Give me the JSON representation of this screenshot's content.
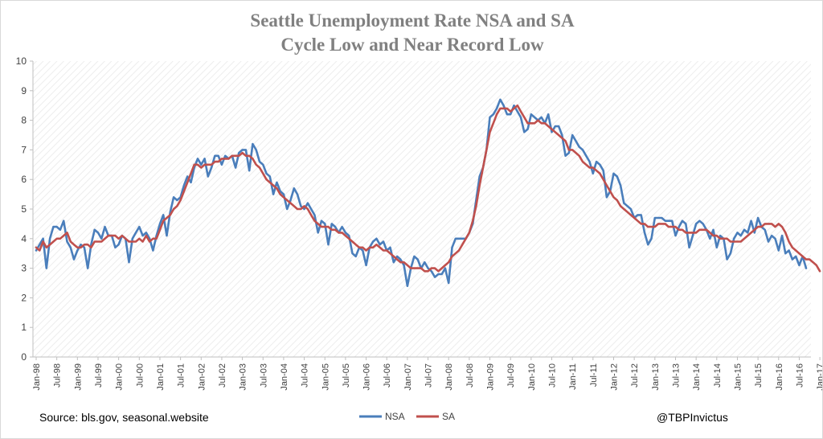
{
  "chart_data": {
    "type": "line",
    "title_line1": "Seattle Unemployment Rate NSA and SA",
    "title_line2": "Cycle Low and Near Record Low",
    "ylim": [
      0,
      10
    ],
    "yticks": [
      0,
      1,
      2,
      3,
      4,
      5,
      6,
      7,
      8,
      9,
      10
    ],
    "x_tick_labels": [
      "Jan-98",
      "Jul-98",
      "Jan-99",
      "Jul-99",
      "Jan-00",
      "Jul-00",
      "Jan-01",
      "Jul-01",
      "Jan-02",
      "Jul-02",
      "Jan-03",
      "Jul-03",
      "Jan-04",
      "Jul-04",
      "Jan-05",
      "Jul-05",
      "Jan-06",
      "Jul-06",
      "Jan-07",
      "Jul-07",
      "Jan-08",
      "Jul-08",
      "Jan-09",
      "Jul-09",
      "Jan-10",
      "Jul-10",
      "Jan-11",
      "Jul-11",
      "Jan-12",
      "Jul-12",
      "Jan-13",
      "Jul-13",
      "Jan-14",
      "Jul-14",
      "Jan-15",
      "Jul-15",
      "Jan-16",
      "Jul-16",
      "Jan-17"
    ],
    "x_start": "Jan-98",
    "grid": false,
    "legend_position": "bottom",
    "series": [
      {
        "name": "NSA",
        "color": "#4a7ebb",
        "values": [
          3.6,
          3.8,
          4.0,
          3.0,
          4.0,
          4.4,
          4.4,
          4.3,
          4.6,
          3.9,
          3.7,
          3.3,
          3.6,
          3.8,
          3.7,
          3.0,
          3.8,
          4.3,
          4.2,
          4.0,
          4.4,
          4.1,
          4.1,
          3.7,
          3.8,
          4.1,
          4.0,
          3.2,
          4.0,
          4.2,
          4.4,
          4.1,
          4.2,
          4.0,
          3.6,
          4.1,
          4.5,
          4.8,
          4.1,
          4.9,
          5.4,
          5.3,
          5.4,
          5.8,
          6.1,
          5.9,
          6.4,
          6.7,
          6.5,
          6.7,
          6.1,
          6.4,
          6.8,
          6.8,
          6.5,
          6.8,
          6.7,
          6.8,
          6.4,
          6.9,
          7.0,
          7.0,
          6.3,
          7.2,
          7.0,
          6.6,
          6.5,
          6.2,
          6.1,
          5.5,
          5.9,
          5.6,
          5.5,
          5.0,
          5.3,
          5.7,
          5.5,
          5.1,
          5.0,
          5.2,
          5.0,
          4.8,
          4.2,
          4.6,
          4.5,
          3.8,
          4.5,
          4.4,
          4.2,
          4.4,
          4.2,
          4.1,
          3.5,
          3.4,
          3.7,
          3.6,
          3.1,
          3.7,
          3.9,
          4.0,
          3.8,
          3.9,
          3.6,
          3.7,
          3.2,
          3.4,
          3.3,
          3.1,
          2.4,
          3.0,
          3.4,
          3.3,
          3.0,
          3.2,
          3.0,
          2.9,
          2.7,
          2.8,
          2.8,
          3.0,
          2.5,
          3.7,
          4.0,
          4.0,
          4.0,
          4.0,
          4.2,
          4.5,
          5.3,
          6.1,
          6.4,
          7.0,
          8.1,
          8.2,
          8.4,
          8.7,
          8.5,
          8.2,
          8.2,
          8.5,
          8.3,
          8.1,
          7.6,
          7.7,
          8.2,
          8.1,
          8.0,
          8.1,
          7.9,
          8.2,
          7.6,
          7.8,
          7.8,
          7.5,
          6.8,
          6.9,
          7.5,
          7.3,
          7.1,
          7.0,
          6.8,
          6.6,
          6.2,
          6.6,
          6.5,
          6.3,
          5.4,
          5.6,
          6.2,
          6.1,
          5.8,
          5.2,
          5.1,
          5.0,
          4.7,
          4.8,
          4.8,
          4.2,
          3.8,
          4.0,
          4.7,
          4.7,
          4.7,
          4.6,
          4.6,
          4.6,
          4.1,
          4.4,
          4.6,
          4.5,
          3.7,
          4.1,
          4.5,
          4.6,
          4.5,
          4.3,
          4.0,
          4.3,
          3.7,
          4.1,
          4.0,
          3.3,
          3.5,
          4.0,
          4.2,
          4.1,
          4.3,
          4.2,
          4.6,
          4.2,
          4.7,
          4.4,
          4.3,
          3.9,
          4.1,
          4.0,
          3.6,
          4.1,
          3.5,
          3.6,
          3.3,
          3.4,
          3.1,
          3.4,
          3.0
        ],
        "points": 230
      },
      {
        "name": "SA",
        "color": "#c0504d",
        "values": [
          3.7,
          3.6,
          3.9,
          3.7,
          3.8,
          3.9,
          4.0,
          4.0,
          4.1,
          4.2,
          3.9,
          3.8,
          3.7,
          3.7,
          3.8,
          3.8,
          3.7,
          3.9,
          3.9,
          3.9,
          4.0,
          4.1,
          4.1,
          4.1,
          4.0,
          4.1,
          4.0,
          3.9,
          3.9,
          3.9,
          4.0,
          3.9,
          4.1,
          3.9,
          4.0,
          4.0,
          4.3,
          4.6,
          4.7,
          4.8,
          5.0,
          5.1,
          5.3,
          5.6,
          5.9,
          6.2,
          6.5,
          6.5,
          6.4,
          6.5,
          6.5,
          6.5,
          6.6,
          6.6,
          6.7,
          6.7,
          6.7,
          6.8,
          6.8,
          6.8,
          6.9,
          6.8,
          6.8,
          6.7,
          6.5,
          6.4,
          6.2,
          6.0,
          5.9,
          5.8,
          5.7,
          5.5,
          5.4,
          5.3,
          5.2,
          5.1,
          5.0,
          5.0,
          5.1,
          5.0,
          4.8,
          4.6,
          4.5,
          4.4,
          4.4,
          4.4,
          4.3,
          4.3,
          4.2,
          4.2,
          4.1,
          4.0,
          3.9,
          3.8,
          3.7,
          3.7,
          3.6,
          3.7,
          3.7,
          3.8,
          3.7,
          3.6,
          3.6,
          3.5,
          3.4,
          3.3,
          3.2,
          3.2,
          3.1,
          3.0,
          3.0,
          3.0,
          3.0,
          2.9,
          2.9,
          3.0,
          3.0,
          2.9,
          3.0,
          3.1,
          3.2,
          3.4,
          3.5,
          3.6,
          3.8,
          4.0,
          4.2,
          4.6,
          5.1,
          5.8,
          6.4,
          7.0,
          7.6,
          7.9,
          8.2,
          8.4,
          8.4,
          8.4,
          8.3,
          8.4,
          8.5,
          8.3,
          8.1,
          7.9,
          7.9,
          7.9,
          8.0,
          7.9,
          7.9,
          7.8,
          7.7,
          7.6,
          7.5,
          7.4,
          7.3,
          7.0,
          7.0,
          6.9,
          6.8,
          6.6,
          6.5,
          6.4,
          6.4,
          6.3,
          6.2,
          6.0,
          5.8,
          5.6,
          5.4,
          5.3,
          5.1,
          5.0,
          4.9,
          4.8,
          4.7,
          4.6,
          4.5,
          4.5,
          4.4,
          4.4,
          4.4,
          4.5,
          4.5,
          4.5,
          4.4,
          4.4,
          4.4,
          4.3,
          4.3,
          4.2,
          4.2,
          4.2,
          4.2,
          4.3,
          4.3,
          4.3,
          4.2,
          4.1,
          4.1,
          4.0,
          4.0,
          4.0,
          3.9,
          3.9,
          3.9,
          3.9,
          4.0,
          4.1,
          4.2,
          4.3,
          4.4,
          4.4,
          4.5,
          4.5,
          4.5,
          4.4,
          4.5,
          4.4,
          4.2,
          3.9,
          3.7,
          3.6,
          3.5,
          3.4,
          3.3,
          3.3,
          3.2,
          3.1,
          2.9
        ],
        "points": 230
      }
    ]
  },
  "footer": {
    "source": "Source: bls.gov, seasonal.website",
    "handle": "@TBPInvictus"
  }
}
